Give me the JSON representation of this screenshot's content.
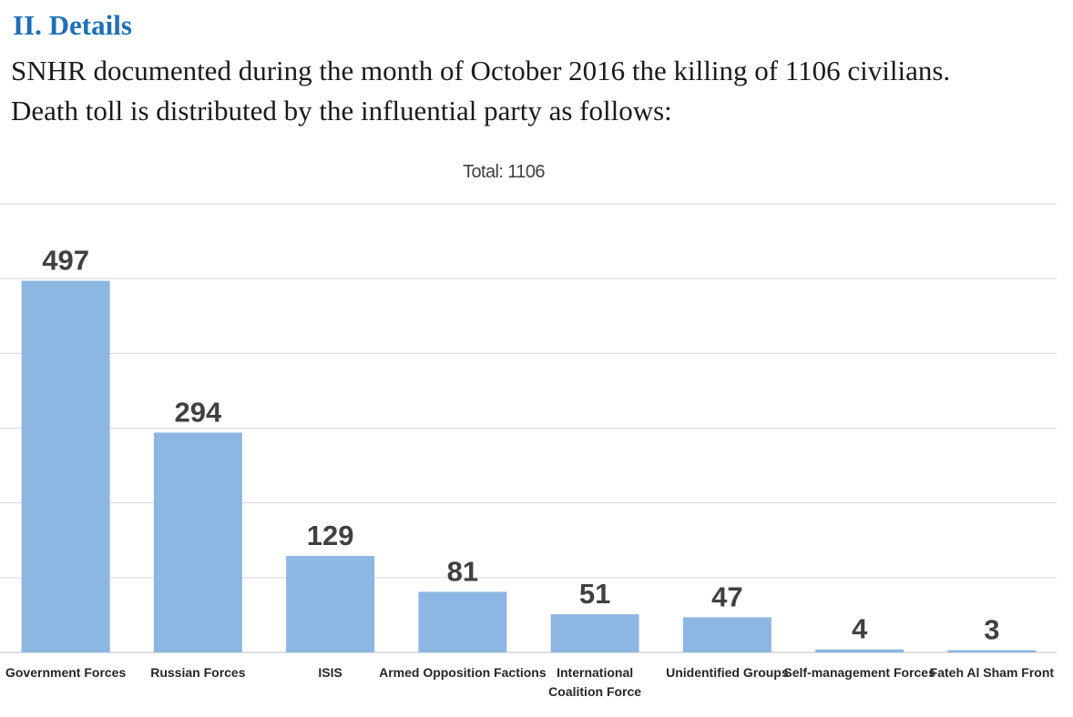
{
  "section": {
    "heading": "II. Details",
    "paragraph_line1": "SNHR documented during the month of October 2016 the killing of 1106 civilians.",
    "paragraph_line2": "Death toll is distributed by the influential party as follows:"
  },
  "chart_data": {
    "type": "bar",
    "title": "Total: 1106",
    "categories": [
      [
        "Government Forces"
      ],
      [
        "Russian Forces"
      ],
      [
        "ISIS"
      ],
      [
        "Armed Opposition Factions"
      ],
      [
        "International",
        "Coalition Force"
      ],
      [
        "Unidentified Groups"
      ],
      [
        "Self-management Forces"
      ],
      [
        "Fateh Al Sham Front"
      ]
    ],
    "values": [
      497,
      294,
      129,
      81,
      51,
      47,
      4,
      3
    ],
    "ylim": [
      0,
      600
    ],
    "gridlines": [
      0,
      100,
      200,
      300,
      400,
      500,
      600
    ],
    "bar_color": "#8db7e2",
    "grid": true,
    "legend": "none"
  }
}
